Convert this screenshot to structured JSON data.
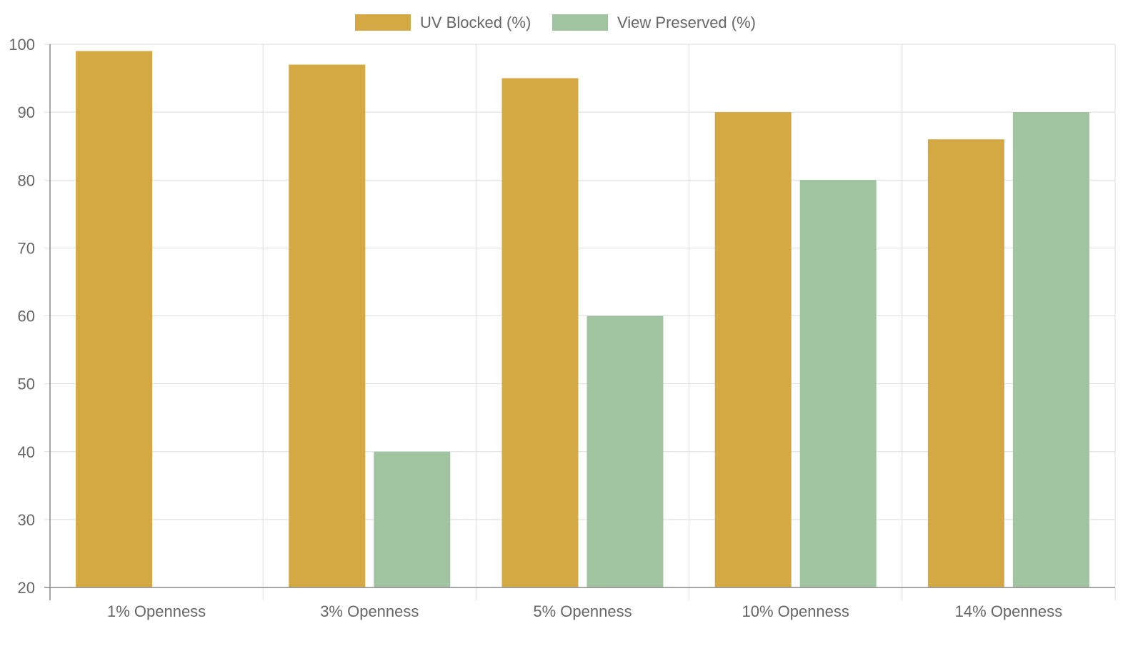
{
  "chart_data": {
    "type": "bar",
    "categories": [
      "1% Openness",
      "3% Openness",
      "5% Openness",
      "10% Openness",
      "14% Openness"
    ],
    "series": [
      {
        "name": "UV Blocked (%)",
        "values": [
          99,
          97,
          95,
          90,
          86
        ],
        "color": "#d4a843"
      },
      {
        "name": "View Preserved (%)",
        "values": [
          20,
          40,
          60,
          80,
          90
        ],
        "color": "#a0c4a0"
      }
    ],
    "ylim": [
      20,
      100
    ],
    "yticks": [
      20,
      30,
      40,
      50,
      60,
      70,
      80,
      90,
      100
    ],
    "grid": true,
    "legend": "top-center",
    "axis_color": "#888888",
    "grid_color": "#dddddd",
    "text_color": "#666666"
  }
}
